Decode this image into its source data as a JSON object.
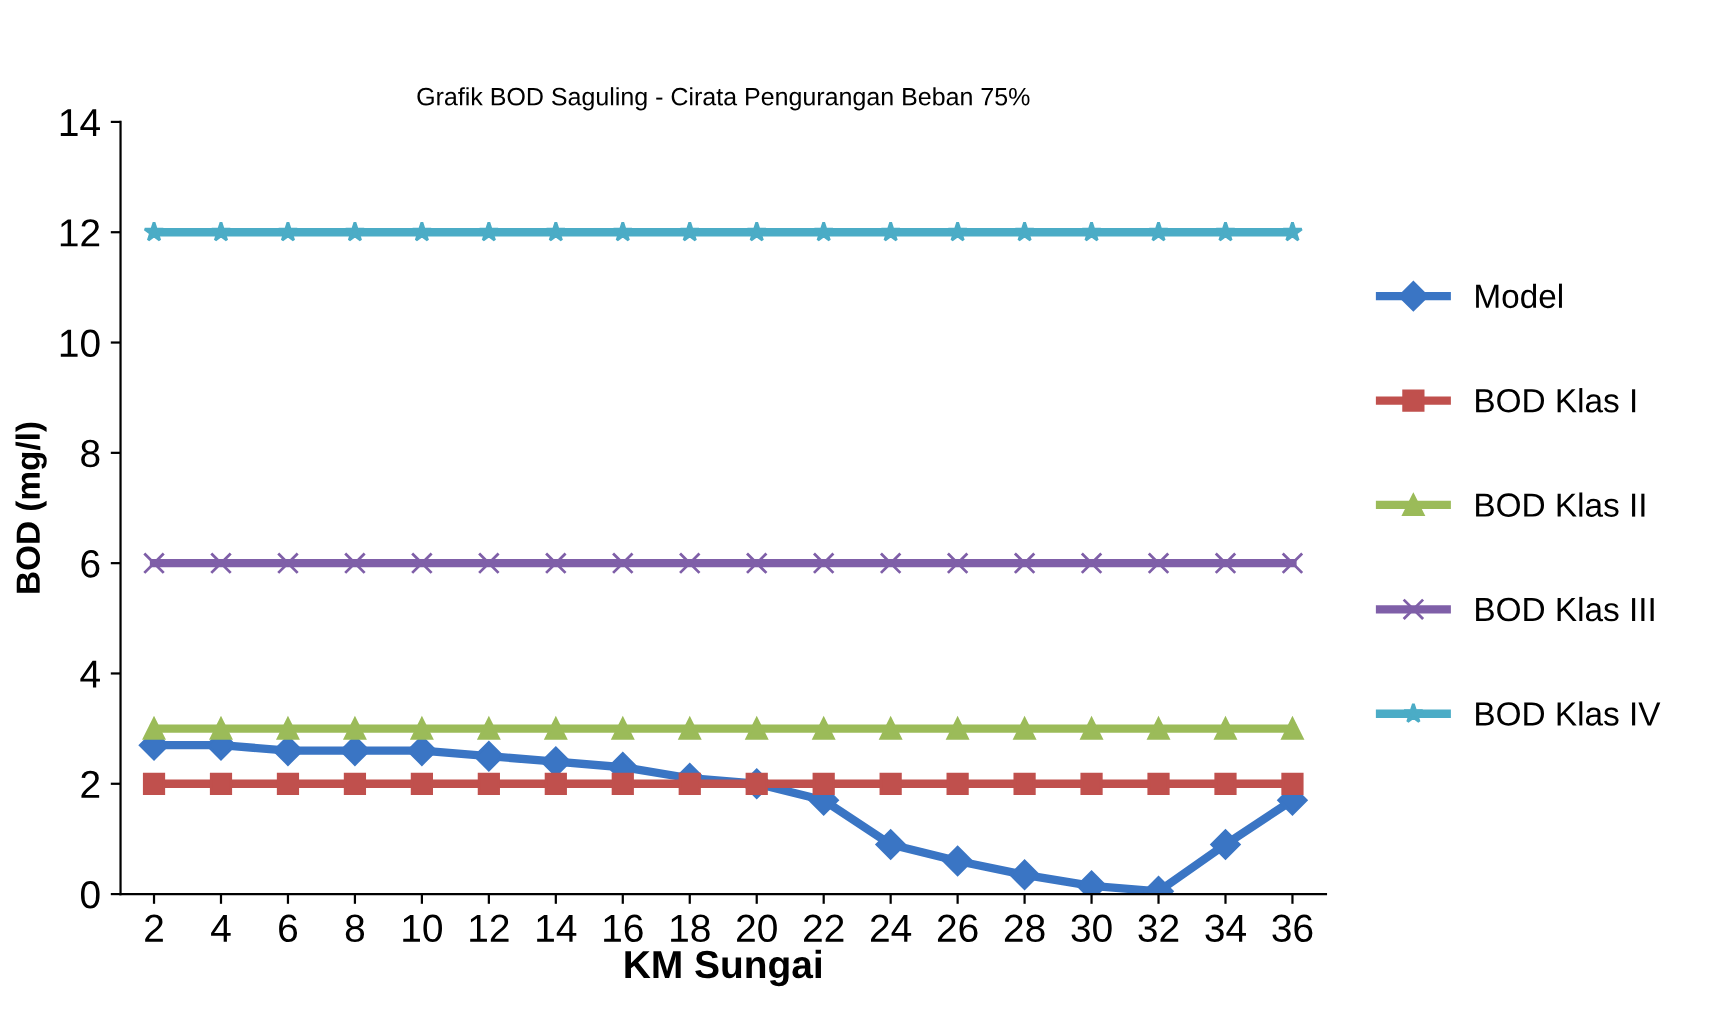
{
  "chart_data": {
    "type": "line",
    "title": "Grafik BOD Saguling - Cirata Pengurangan Beban 75%",
    "xlabel": "KM Sungai",
    "ylabel": "BOD (mg/l)",
    "categories": [
      "2",
      "4",
      "6",
      "8",
      "10",
      "12",
      "14",
      "16",
      "18",
      "20",
      "22",
      "24",
      "26",
      "28",
      "30",
      "32",
      "34",
      "36"
    ],
    "series": [
      {
        "name": "Model",
        "color": "#3a75c4",
        "marker": "diamond",
        "values": [
          2.7,
          2.7,
          2.6,
          2.6,
          2.6,
          2.5,
          2.4,
          2.3,
          2.1,
          2.0,
          1.7,
          0.9,
          0.6,
          0.35,
          0.15,
          0.05,
          0.9,
          1.7
        ]
      },
      {
        "name": "BOD Klas I",
        "color": "#c0504d",
        "marker": "square",
        "values": [
          2,
          2,
          2,
          2,
          2,
          2,
          2,
          2,
          2,
          2,
          2,
          2,
          2,
          2,
          2,
          2,
          2,
          2
        ]
      },
      {
        "name": "BOD Klas II",
        "color": "#9bbb59",
        "marker": "triangle",
        "values": [
          3,
          3,
          3,
          3,
          3,
          3,
          3,
          3,
          3,
          3,
          3,
          3,
          3,
          3,
          3,
          3,
          3,
          3
        ]
      },
      {
        "name": "BOD Klas III",
        "color": "#7f5fa8",
        "marker": "cross",
        "values": [
          6,
          6,
          6,
          6,
          6,
          6,
          6,
          6,
          6,
          6,
          6,
          6,
          6,
          6,
          6,
          6,
          6,
          6
        ]
      },
      {
        "name": "BOD Klas IV",
        "color": "#4bacc6",
        "marker": "star",
        "values": [
          12,
          12,
          12,
          12,
          12,
          12,
          12,
          12,
          12,
          12,
          12,
          12,
          12,
          12,
          12,
          12,
          12,
          12
        ]
      }
    ],
    "ylim": [
      0,
      14
    ],
    "yticks": [
      0,
      2,
      4,
      6,
      8,
      10,
      12,
      14
    ],
    "grid": false,
    "legend": "right",
    "line_style": "solid"
  }
}
